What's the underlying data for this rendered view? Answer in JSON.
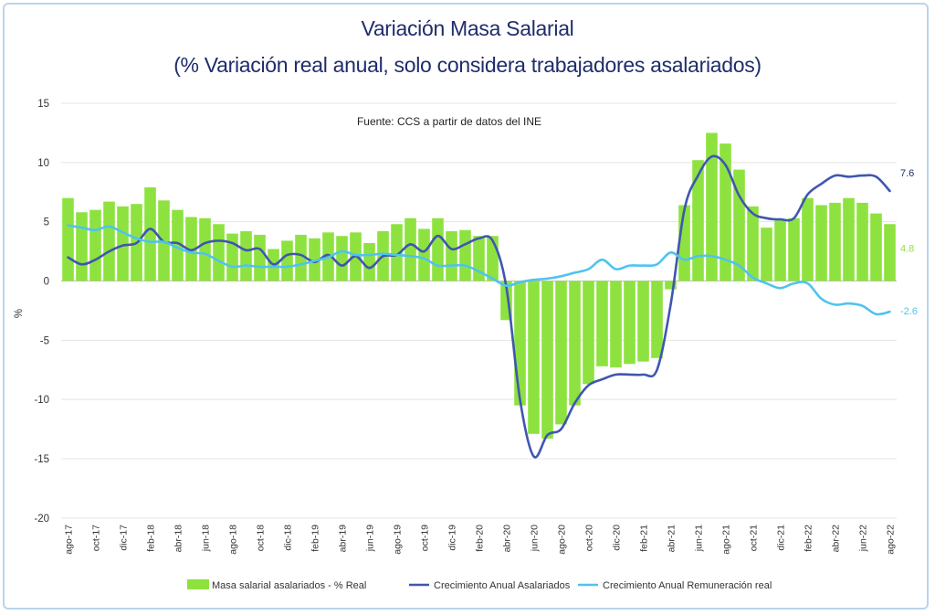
{
  "chart_data": {
    "type": "bar",
    "title": "Variación Masa Salarial",
    "subtitle": "(% Variación real anual, solo considera trabajadores asalariados)",
    "source": "Fuente: CCS a partir de datos del INE",
    "ylabel": "%",
    "ylim": [
      -20,
      15
    ],
    "yticks": [
      15,
      10,
      5,
      0,
      -5,
      -10,
      -15,
      -20
    ],
    "grid": true,
    "legend_position": "bottom",
    "categories": [
      "ago-17",
      "sep-17",
      "oct-17",
      "nov-17",
      "dic-17",
      "ene-18",
      "feb-18",
      "mar-18",
      "abr-18",
      "may-18",
      "jun-18",
      "jul-18",
      "ago-18",
      "sep-18",
      "oct-18",
      "nov-18",
      "dic-18",
      "ene-19",
      "feb-19",
      "mar-19",
      "abr-19",
      "may-19",
      "jun-19",
      "jul-19",
      "ago-19",
      "sep-19",
      "oct-19",
      "nov-19",
      "dic-19",
      "ene-20",
      "feb-20",
      "mar-20",
      "abr-20",
      "may-20",
      "jun-20",
      "jul-20",
      "ago-20",
      "sep-20",
      "oct-20",
      "nov-20",
      "dic-20",
      "ene-21",
      "feb-21",
      "mar-21",
      "abr-21",
      "may-21",
      "jun-21",
      "jul-21",
      "ago-21",
      "sep-21",
      "oct-21",
      "nov-21",
      "dic-21",
      "ene-22",
      "feb-22",
      "mar-22",
      "abr-22",
      "may-22",
      "jun-22",
      "jul-22",
      "ago-22"
    ],
    "xtick_labels": [
      "ago-17",
      "oct-17",
      "dic-17",
      "feb-18",
      "abr-18",
      "jun-18",
      "ago-18",
      "oct-18",
      "dic-18",
      "feb-19",
      "abr-19",
      "jun-19",
      "ago-19",
      "oct-19",
      "dic-19",
      "feb-20",
      "abr-20",
      "jun-20",
      "ago-20",
      "oct-20",
      "dic-20",
      "feb-21",
      "abr-21",
      "jun-21",
      "ago-21",
      "oct-21",
      "dic-21",
      "feb-22",
      "abr-22",
      "jun-22",
      "ago-22"
    ],
    "series": [
      {
        "name": "Masa salarial asalariados - % Real",
        "kind": "bar",
        "color": "#8ee23f",
        "values": [
          7.0,
          5.8,
          6.0,
          6.7,
          6.3,
          6.5,
          7.9,
          6.8,
          6.0,
          5.4,
          5.3,
          4.8,
          4.0,
          4.2,
          3.9,
          2.7,
          3.4,
          3.9,
          3.6,
          4.1,
          3.8,
          4.1,
          3.2,
          4.2,
          4.8,
          5.3,
          4.4,
          5.3,
          4.2,
          4.3,
          3.8,
          3.8,
          -3.3,
          -10.5,
          -12.9,
          -13.3,
          -12.1,
          -10.5,
          -8.7,
          -7.2,
          -7.3,
          -7.0,
          -6.8,
          -6.5,
          -0.7,
          6.4,
          10.2,
          12.5,
          11.6,
          9.4,
          6.3,
          4.5,
          5.1,
          5.3,
          7.0,
          6.4,
          6.6,
          7.0,
          6.6,
          5.7,
          4.8
        ],
        "end_label": "4.8"
      },
      {
        "name": "Crecimiento Anual Asalariados",
        "kind": "line",
        "color": "#3f56b0",
        "values": [
          2.0,
          1.4,
          1.8,
          2.5,
          3.0,
          3.2,
          4.4,
          3.3,
          3.2,
          2.6,
          3.2,
          3.4,
          3.2,
          2.6,
          2.7,
          1.4,
          2.2,
          2.2,
          1.6,
          2.2,
          1.3,
          2.1,
          1.1,
          2.1,
          2.2,
          3.1,
          2.5,
          3.8,
          2.7,
          3.1,
          3.6,
          3.4,
          -0.5,
          -10.0,
          -14.8,
          -13.0,
          -12.5,
          -10.3,
          -8.8,
          -8.3,
          -7.9,
          -7.9,
          -7.9,
          -7.5,
          -2.0,
          6.0,
          8.9,
          10.5,
          9.8,
          7.2,
          5.7,
          5.3,
          5.2,
          5.3,
          7.3,
          8.2,
          8.9,
          8.8,
          8.9,
          8.8,
          7.6
        ],
        "end_label": "7.6"
      },
      {
        "name": "Crecimiento Anual Remuneración real",
        "kind": "line",
        "color": "#4fc3ee",
        "values": [
          4.7,
          4.5,
          4.3,
          4.6,
          4.1,
          3.6,
          3.3,
          3.3,
          2.8,
          2.4,
          2.3,
          1.7,
          1.2,
          1.3,
          1.2,
          1.2,
          1.2,
          1.4,
          1.7,
          2.0,
          2.5,
          2.2,
          2.2,
          2.3,
          2.2,
          2.1,
          1.9,
          1.3,
          1.3,
          1.3,
          0.8,
          0.2,
          -0.4,
          -0.1,
          0.1,
          0.2,
          0.4,
          0.7,
          1.0,
          1.8,
          1.0,
          1.3,
          1.3,
          1.4,
          2.4,
          1.8,
          2.1,
          2.1,
          1.8,
          1.3,
          0.3,
          -0.2,
          -0.6,
          -0.2,
          -0.2,
          -1.5,
          -2.0,
          -1.9,
          -2.1,
          -2.8,
          -2.6
        ],
        "end_label": "-2.6"
      }
    ]
  }
}
